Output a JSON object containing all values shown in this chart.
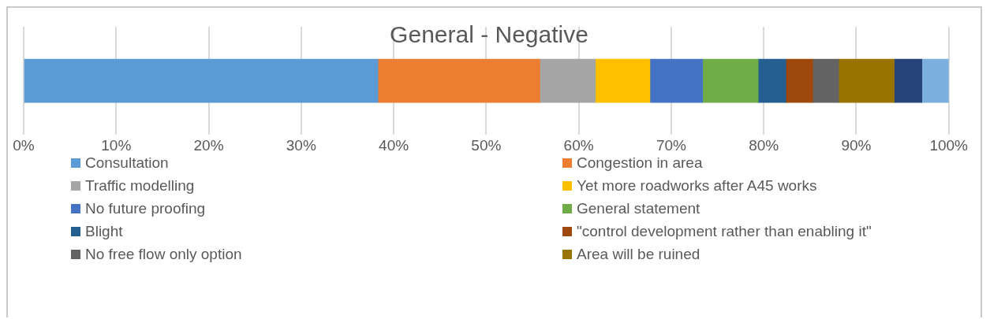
{
  "chart_data": {
    "type": "bar",
    "title": "General - Negative",
    "orientation": "horizontal",
    "stacked": true,
    "categories": [
      null
    ],
    "xlim": [
      0,
      100
    ],
    "xticks": [
      {
        "value": 0,
        "label": "0%"
      },
      {
        "value": 10,
        "label": "10%"
      },
      {
        "value": 20,
        "label": "20%"
      },
      {
        "value": 30,
        "label": "30%"
      },
      {
        "value": 40,
        "label": "40%"
      },
      {
        "value": 50,
        "label": "50%"
      },
      {
        "value": 60,
        "label": "60%"
      },
      {
        "value": 70,
        "label": "70%"
      },
      {
        "value": 80,
        "label": "80%"
      },
      {
        "value": 90,
        "label": "90%"
      },
      {
        "value": 100,
        "label": "100%"
      }
    ],
    "grid": "x",
    "legend": "bottom",
    "series": [
      {
        "name": "Consultation",
        "color": "#5b9bd5",
        "values": [
          38.3
        ]
      },
      {
        "name": "Congestion in area",
        "color": "#ed7d31",
        "values": [
          17.5
        ]
      },
      {
        "name": "Traffic modelling",
        "color": "#a5a5a5",
        "values": [
          6
        ]
      },
      {
        "name": "Yet more roadworks after A45 works",
        "color": "#ffc000",
        "values": [
          5.9
        ]
      },
      {
        "name": "No future proofing",
        "color": "#4472c4",
        "values": [
          5.7
        ]
      },
      {
        "name": "General statement",
        "color": "#70ad47",
        "values": [
          6
        ]
      },
      {
        "name": "Blight",
        "color": "#255e91",
        "values": [
          3
        ]
      },
      {
        "name": "\"control development rather than enabling it\"",
        "color": "#9e480e",
        "values": [
          2.9
        ]
      },
      {
        "name": "No free flow only option",
        "color": "#636363",
        "values": [
          2.8
        ]
      },
      {
        "name": "Area will be ruined",
        "color": "#997300",
        "values": [
          6
        ]
      },
      {
        "color": "#264478",
        "values": [
          3
        ]
      },
      {
        "color": "#7cafdd",
        "values": [
          2.9
        ]
      }
    ]
  }
}
